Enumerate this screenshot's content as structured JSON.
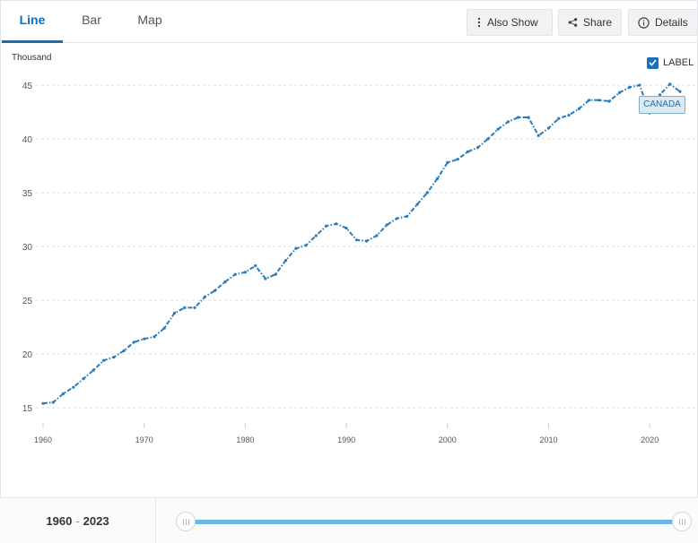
{
  "tabs": [
    {
      "label": "Line",
      "active": true
    },
    {
      "label": "Bar",
      "active": false
    },
    {
      "label": "Map",
      "active": false
    }
  ],
  "toolbar": {
    "also_show": "Also Show",
    "share": "Share",
    "details": "Details"
  },
  "legend": {
    "label_toggle": "LABEL",
    "label_checked": true,
    "country": "CANADA"
  },
  "range": {
    "start": "1960",
    "separator": "-",
    "end": "2023"
  },
  "colors": {
    "line": "#2b7bb9",
    "accent": "#0f6fb8",
    "slider": "#6fb4e5"
  },
  "chart_data": {
    "type": "line",
    "title": "",
    "ylabel": "Thousand",
    "xlabel": "",
    "ylim": [
      13,
      46
    ],
    "xlim": [
      1959.5,
      2023.5
    ],
    "yticks": [
      15,
      20,
      25,
      30,
      35,
      40,
      45
    ],
    "xticks": [
      1960,
      1970,
      1980,
      1990,
      2000,
      2010,
      2020
    ],
    "grid": true,
    "line_style": "dash-dot",
    "series": [
      {
        "name": "CANADA",
        "x": [
          1960,
          1961,
          1962,
          1963,
          1964,
          1965,
          1966,
          1967,
          1968,
          1969,
          1970,
          1971,
          1972,
          1973,
          1974,
          1975,
          1976,
          1977,
          1978,
          1979,
          1980,
          1981,
          1982,
          1983,
          1984,
          1985,
          1986,
          1987,
          1988,
          1989,
          1990,
          1991,
          1992,
          1993,
          1994,
          1995,
          1996,
          1997,
          1998,
          1999,
          2000,
          2001,
          2002,
          2003,
          2004,
          2005,
          2006,
          2007,
          2008,
          2009,
          2010,
          2011,
          2012,
          2013,
          2014,
          2015,
          2016,
          2017,
          2018,
          2019,
          2020,
          2021,
          2022,
          2023
        ],
        "values": [
          15.4,
          15.5,
          16.3,
          16.9,
          17.7,
          18.5,
          19.4,
          19.7,
          20.3,
          21.1,
          21.4,
          21.6,
          22.4,
          23.8,
          24.3,
          24.3,
          25.3,
          25.9,
          26.7,
          27.4,
          27.6,
          28.2,
          27.0,
          27.4,
          28.7,
          29.8,
          30.1,
          31.0,
          31.9,
          32.1,
          31.7,
          30.6,
          30.5,
          31.0,
          32.0,
          32.6,
          32.8,
          33.9,
          35.0,
          36.3,
          37.8,
          38.1,
          38.8,
          39.2,
          40.0,
          40.9,
          41.6,
          42.0,
          42.0,
          40.3,
          41.0,
          41.9,
          42.2,
          42.8,
          43.6,
          43.6,
          43.5,
          44.3,
          44.8,
          45.0,
          42.4,
          44.1,
          45.1,
          44.4
        ]
      }
    ]
  }
}
